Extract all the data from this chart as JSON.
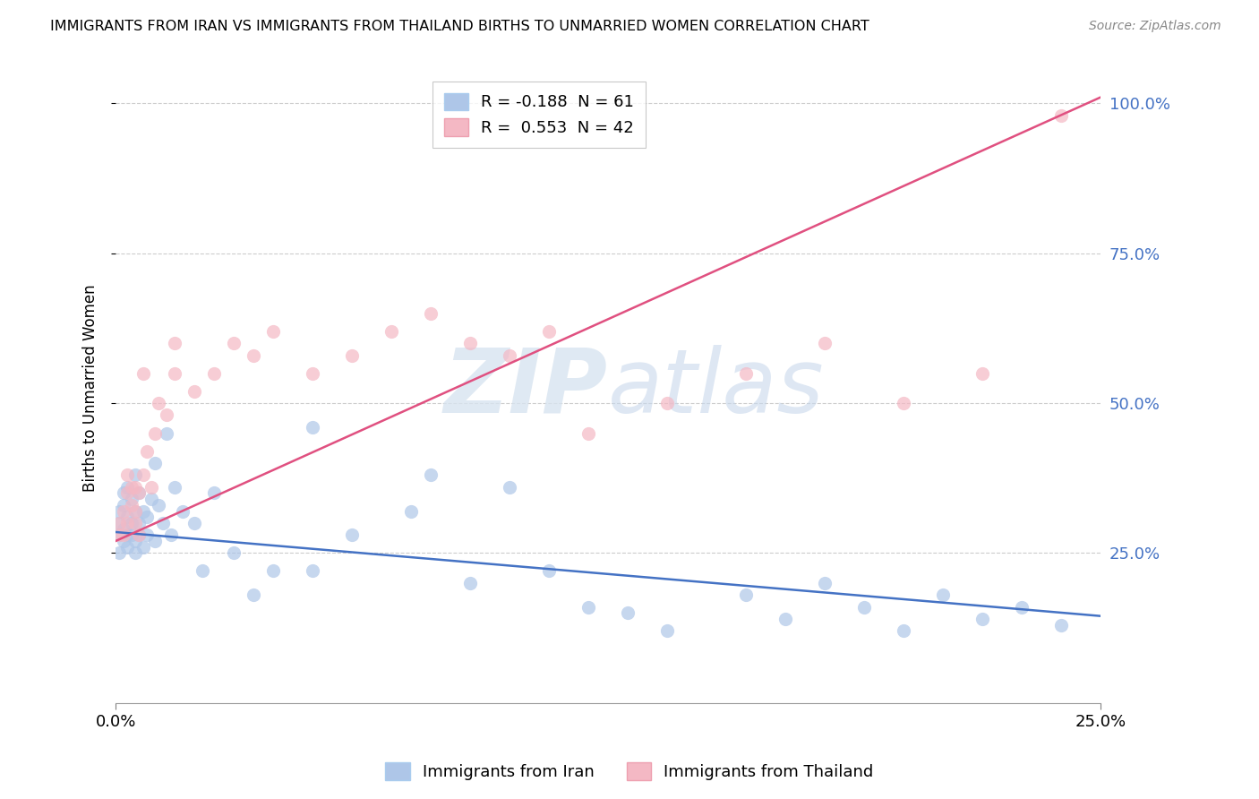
{
  "title": "IMMIGRANTS FROM IRAN VS IMMIGRANTS FROM THAILAND BIRTHS TO UNMARRIED WOMEN CORRELATION CHART",
  "source": "Source: ZipAtlas.com",
  "ylabel": "Births to Unmarried Women",
  "ytick_values": [
    0.25,
    0.5,
    0.75,
    1.0
  ],
  "ytick_labels": [
    "25.0%",
    "50.0%",
    "75.0%",
    "100.0%"
  ],
  "xlim": [
    0.0,
    0.25
  ],
  "ylim": [
    0.0,
    1.05
  ],
  "iran_color": "#aec6e8",
  "thailand_color": "#f4b8c4",
  "iran_line_color": "#4472c4",
  "thailand_line_color": "#e05080",
  "watermark_zip": "ZIP",
  "watermark_atlas": "atlas",
  "legend_iran_r": "-0.188",
  "legend_iran_n": "61",
  "legend_thailand_r": "0.553",
  "legend_thailand_n": "42",
  "iran_trend_x0": 0.0,
  "iran_trend_y0": 0.285,
  "iran_trend_x1": 0.25,
  "iran_trend_y1": 0.145,
  "thailand_trend_x0": 0.0,
  "thailand_trend_y0": 0.27,
  "thailand_trend_x1": 0.25,
  "thailand_trend_y1": 1.01,
  "iran_x": [
    0.001,
    0.001,
    0.001,
    0.001,
    0.002,
    0.002,
    0.002,
    0.002,
    0.003,
    0.003,
    0.003,
    0.003,
    0.004,
    0.004,
    0.004,
    0.005,
    0.005,
    0.005,
    0.005,
    0.006,
    0.006,
    0.006,
    0.007,
    0.007,
    0.008,
    0.008,
    0.009,
    0.01,
    0.01,
    0.011,
    0.012,
    0.013,
    0.014,
    0.015,
    0.017,
    0.02,
    0.022,
    0.025,
    0.03,
    0.035,
    0.04,
    0.05,
    0.06,
    0.075,
    0.09,
    0.1,
    0.11,
    0.12,
    0.14,
    0.16,
    0.17,
    0.18,
    0.19,
    0.2,
    0.21,
    0.22,
    0.23,
    0.24,
    0.05,
    0.08,
    0.13
  ],
  "iran_y": [
    0.3,
    0.28,
    0.32,
    0.25,
    0.29,
    0.33,
    0.27,
    0.35,
    0.28,
    0.31,
    0.26,
    0.36,
    0.3,
    0.34,
    0.28,
    0.32,
    0.27,
    0.38,
    0.25,
    0.3,
    0.35,
    0.28,
    0.32,
    0.26,
    0.31,
    0.28,
    0.34,
    0.4,
    0.27,
    0.33,
    0.3,
    0.45,
    0.28,
    0.36,
    0.32,
    0.3,
    0.22,
    0.35,
    0.25,
    0.18,
    0.22,
    0.46,
    0.28,
    0.32,
    0.2,
    0.36,
    0.22,
    0.16,
    0.12,
    0.18,
    0.14,
    0.2,
    0.16,
    0.12,
    0.18,
    0.14,
    0.16,
    0.13,
    0.22,
    0.38,
    0.15
  ],
  "thailand_x": [
    0.001,
    0.001,
    0.002,
    0.002,
    0.003,
    0.003,
    0.003,
    0.004,
    0.004,
    0.005,
    0.005,
    0.006,
    0.006,
    0.007,
    0.008,
    0.009,
    0.01,
    0.011,
    0.013,
    0.015,
    0.02,
    0.025,
    0.03,
    0.035,
    0.04,
    0.05,
    0.06,
    0.07,
    0.08,
    0.09,
    0.1,
    0.11,
    0.12,
    0.14,
    0.16,
    0.18,
    0.2,
    0.22,
    0.24,
    0.005,
    0.015,
    0.007
  ],
  "thailand_y": [
    0.3,
    0.28,
    0.32,
    0.28,
    0.35,
    0.3,
    0.38,
    0.33,
    0.36,
    0.3,
    0.32,
    0.35,
    0.28,
    0.38,
    0.42,
    0.36,
    0.45,
    0.5,
    0.48,
    0.55,
    0.52,
    0.55,
    0.6,
    0.58,
    0.62,
    0.55,
    0.58,
    0.62,
    0.65,
    0.6,
    0.58,
    0.62,
    0.45,
    0.5,
    0.55,
    0.6,
    0.5,
    0.55,
    0.98,
    0.36,
    0.6,
    0.55
  ]
}
